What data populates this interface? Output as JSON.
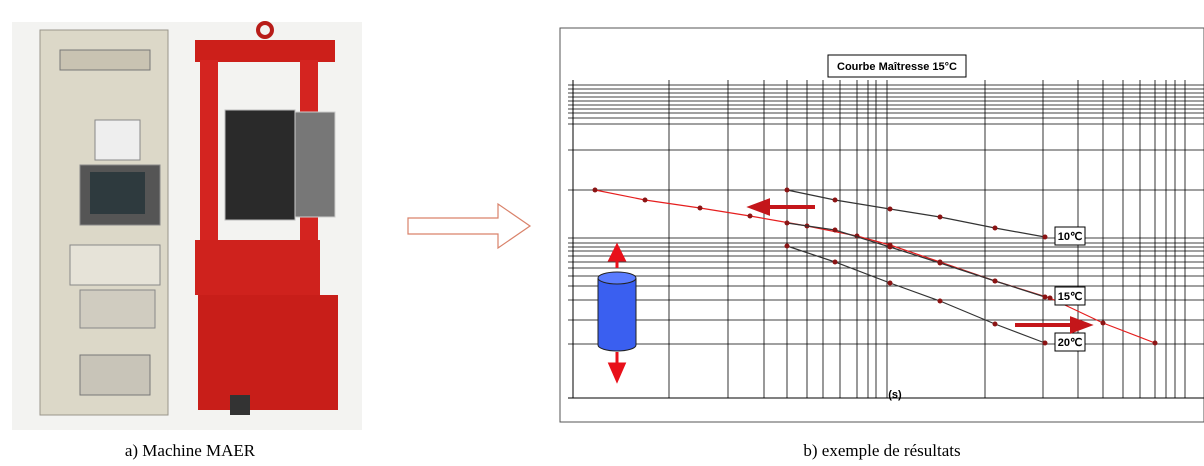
{
  "figure": {
    "left": {
      "caption": "a) Machine MAER"
    },
    "right": {
      "caption": "b) exemple de résultats",
      "chart_title": "Courbe Maîtresse 15°C",
      "curve_labels": [
        "10℃",
        "15℃",
        "20℃"
      ],
      "axis_label": "(s)"
    }
  }
}
